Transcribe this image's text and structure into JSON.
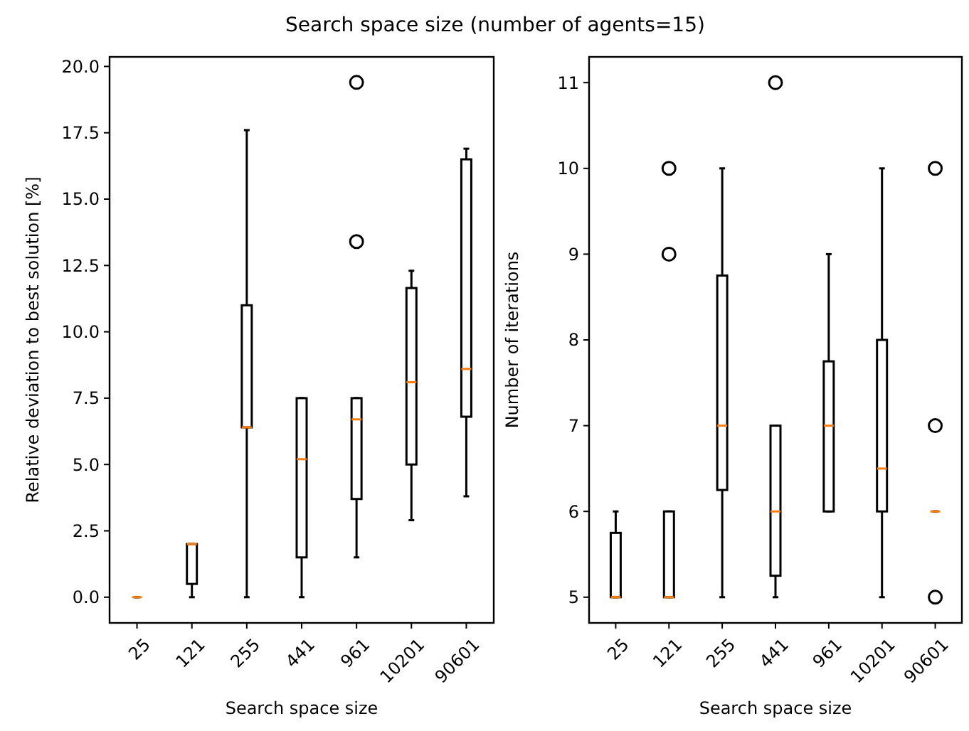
{
  "chart_data": [
    {
      "type": "box",
      "title": "Search space size (number of agents=15)",
      "xlabel": "Search space size",
      "ylabel": "Relative deviation to best solution [%]",
      "categories": [
        "25",
        "121",
        "255",
        "441",
        "961",
        "10201",
        "90601"
      ],
      "boxes": [
        {
          "low": 0,
          "q1": 0,
          "median": 0,
          "q3": 0,
          "high": 0
        },
        {
          "low": 0,
          "q1": 0.5,
          "median": 2.0,
          "q3": 2.0,
          "high": 2.0
        },
        {
          "low": 0,
          "q1": 6.4,
          "median": 6.4,
          "q3": 11.0,
          "high": 17.6
        },
        {
          "low": 0,
          "q1": 1.5,
          "median": 5.2,
          "q3": 7.5,
          "high": 7.5
        },
        {
          "low": 1.5,
          "q1": 3.7,
          "median": 6.7,
          "q3": 7.5,
          "high": 7.5,
          "outliers": [
            13.4,
            19.4
          ]
        },
        {
          "low": 2.9,
          "q1": 5.0,
          "median": 8.1,
          "q3": 11.65,
          "high": 12.3
        },
        {
          "low": 3.8,
          "q1": 6.8,
          "median": 8.6,
          "q3": 16.5,
          "high": 16.9
        }
      ],
      "ylim": [
        -0.97,
        20.36
      ],
      "yticks": [
        {
          "value": 0,
          "label": "0.0"
        },
        {
          "value": 2.5,
          "label": "2.5"
        },
        {
          "value": 5,
          "label": "5.0"
        },
        {
          "value": 7.5,
          "label": "7.5"
        },
        {
          "value": 10,
          "label": "10.0"
        },
        {
          "value": 12.5,
          "label": "12.5"
        },
        {
          "value": 15,
          "label": "15.0"
        },
        {
          "value": 17.5,
          "label": "17.5"
        },
        {
          "value": 20,
          "label": "20.0"
        }
      ],
      "marker": "circle",
      "grid": false
    },
    {
      "type": "box",
      "xlabel": "Search space size",
      "ylabel": "Number of iterations",
      "categories": [
        "25",
        "121",
        "255",
        "441",
        "961",
        "10201",
        "90601"
      ],
      "boxes": [
        {
          "low": 5,
          "q1": 5,
          "median": 5,
          "q3": 5.75,
          "high": 6
        },
        {
          "low": 5,
          "q1": 5,
          "median": 5,
          "q3": 6,
          "high": 6,
          "outliers": [
            9,
            10
          ]
        },
        {
          "low": 5,
          "q1": 6.25,
          "median": 7,
          "q3": 8.75,
          "high": 10
        },
        {
          "low": 5,
          "q1": 5.25,
          "median": 6,
          "q3": 7,
          "high": 7,
          "outliers": [
            11
          ]
        },
        {
          "low": 6,
          "q1": 6,
          "median": 7,
          "q3": 7.75,
          "high": 9
        },
        {
          "low": 5,
          "q1": 6,
          "median": 6.5,
          "q3": 8,
          "high": 10
        },
        {
          "low": 6,
          "q1": 6,
          "median": 6,
          "q3": 6,
          "high": 6,
          "outliers": [
            5,
            7,
            10
          ]
        }
      ],
      "ylim": [
        4.7,
        11.3
      ],
      "yticks": [
        5,
        6,
        7,
        8,
        9,
        10,
        11
      ],
      "marker": "circle",
      "grid": false
    }
  ]
}
